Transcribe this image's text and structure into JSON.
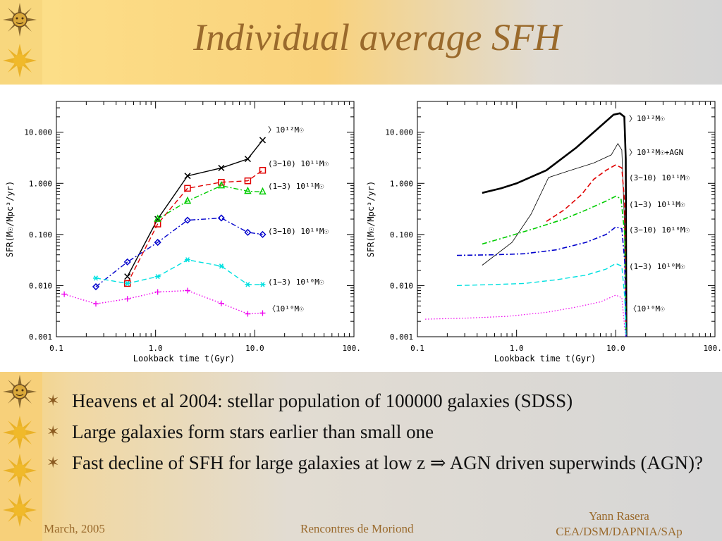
{
  "slide": {
    "title": "Individual average SFH",
    "bullets": [
      "Heavens et al 2004: stellar population of 100000 galaxies (SDSS)",
      "Large galaxies form stars earlier than small one",
      "Fast decline of SFH for large galaxies at low z ⇒ AGN driven superwinds (AGN)?"
    ],
    "footer": {
      "date": "March, 2005",
      "event": "Rencontres de Moriond",
      "author_line1": "Yann Rasera",
      "author_line2": "CEA/DSM/DAPNIA/SAp"
    },
    "decoration": {
      "icon_top": "sun-face-icon",
      "icon_other": "sun-icon",
      "bullet_icon": "star-bullet-icon"
    }
  },
  "chart_data": [
    {
      "type": "line",
      "xlabel": "Lookback time t(Gyr)",
      "ylabel": "SFR(M☉/Mpc³/yr)",
      "xscale": "log",
      "yscale": "log",
      "xlim": [
        0.1,
        100.0
      ],
      "ylim": [
        0.001,
        40
      ],
      "xticks": [
        "0.1",
        "1.0",
        "10.0",
        "100.0"
      ],
      "yticks": [
        "0.001",
        "0.010",
        "0.100",
        "1.000",
        "10.000"
      ],
      "series": [
        {
          "name": "〉10¹²M☉",
          "color": "#000000",
          "dash": "solid",
          "marker": "x",
          "x": [
            0.52,
            1.05,
            2.1,
            4.6,
            8.5,
            12.0
          ],
          "y": [
            0.015,
            0.2,
            1.4,
            2.0,
            3.0,
            7.0
          ]
        },
        {
          "name": "(3−10) 10¹¹M☉",
          "color": "#e00000",
          "dash": "dash",
          "marker": "square",
          "x": [
            0.52,
            1.05,
            2.1,
            4.6,
            8.5,
            12.0
          ],
          "y": [
            0.011,
            0.16,
            0.8,
            1.05,
            1.12,
            1.8
          ]
        },
        {
          "name": "(1−3) 10¹¹M☉",
          "color": "#00cc00",
          "dash": "dashdot",
          "marker": "triangle",
          "x": [
            1.05,
            2.1,
            4.6,
            8.5,
            12.0
          ],
          "y": [
            0.2,
            0.45,
            0.9,
            0.7,
            0.68
          ]
        },
        {
          "name": "(3−10) 10¹⁰M☉",
          "color": "#0000cc",
          "dash": "dashdot",
          "marker": "diamond",
          "x": [
            0.25,
            0.52,
            1.05,
            2.1,
            4.6,
            8.5,
            12.0
          ],
          "y": [
            0.0095,
            0.029,
            0.07,
            0.19,
            0.21,
            0.11,
            0.1
          ]
        },
        {
          "name": "(1−3) 10¹⁰M☉",
          "color": "#00e0e0",
          "dash": "dash",
          "marker": "asterisk",
          "x": [
            0.25,
            0.52,
            1.05,
            2.1,
            4.6,
            8.5,
            12.0
          ],
          "y": [
            0.014,
            0.011,
            0.015,
            0.032,
            0.024,
            0.0105,
            0.0105
          ]
        },
        {
          "name": "〈10¹⁰M☉",
          "color": "#ee00ee",
          "dash": "dot",
          "marker": "plus",
          "x": [
            0.12,
            0.25,
            0.52,
            1.05,
            2.1,
            4.6,
            8.5,
            12.0
          ],
          "y": [
            0.0068,
            0.0044,
            0.0055,
            0.0075,
            0.008,
            0.0045,
            0.0028,
            0.0029
          ]
        }
      ]
    },
    {
      "type": "line",
      "xlabel": "Lookback time t(Gyr)",
      "ylabel": "SFR(M☉/Mpc³/yr)",
      "xscale": "log",
      "yscale": "log",
      "xlim": [
        0.1,
        100.0
      ],
      "ylim": [
        0.001,
        40
      ],
      "xticks": [
        "0.1",
        "1.0",
        "10.0",
        "100.0"
      ],
      "yticks": [
        "0.001",
        "0.010",
        "0.100",
        "1.000",
        "10.000"
      ],
      "series": [
        {
          "name": "〉10¹²M☉",
          "color": "#000000",
          "dash": "solid",
          "width": 2.6,
          "x": [
            0.45,
            0.7,
            1.0,
            2.0,
            4.0,
            7.0,
            9.5,
            11.0,
            12.2,
            12.6,
            12.8
          ],
          "y": [
            0.65,
            0.8,
            1.0,
            1.8,
            5.0,
            13.0,
            22.0,
            23.5,
            20.0,
            3.0,
            0.001
          ]
        },
        {
          "name": "〉10¹²M☉+AGN",
          "color": "#000000",
          "dash": "solid",
          "width": 0.8,
          "x": [
            0.45,
            0.9,
            1.4,
            2.1,
            3.5,
            6.0,
            9.0,
            10.5,
            11.5,
            12.2,
            12.6
          ],
          "y": [
            0.025,
            0.07,
            0.25,
            1.3,
            1.8,
            2.5,
            3.6,
            6.0,
            4.5,
            0.2,
            0.001
          ]
        },
        {
          "name": "(3−10) 10¹¹M☉",
          "color": "#e00000",
          "dash": "dash",
          "width": 1.6,
          "x": [
            2.0,
            3.0,
            4.5,
            6.0,
            8.0,
            10.0,
            11.5,
            12.3,
            12.7
          ],
          "y": [
            0.18,
            0.3,
            0.6,
            1.2,
            1.8,
            2.3,
            2.0,
            0.4,
            0.001
          ]
        },
        {
          "name": "(1−3) 10¹¹M☉",
          "color": "#00cc00",
          "dash": "dashdot",
          "width": 1.6,
          "x": [
            0.45,
            0.8,
            1.5,
            3.0,
            5.0,
            8.0,
            10.0,
            11.3,
            12.3,
            12.7
          ],
          "y": [
            0.065,
            0.09,
            0.13,
            0.2,
            0.3,
            0.45,
            0.56,
            0.5,
            0.1,
            0.001
          ]
        },
        {
          "name": "(3−10) 10¹⁰M☉",
          "color": "#0000cc",
          "dash": "dashdot",
          "width": 1.6,
          "x": [
            0.25,
            0.6,
            1.2,
            2.5,
            5.0,
            8.0,
            10.0,
            11.5,
            12.3,
            12.7
          ],
          "y": [
            0.039,
            0.04,
            0.042,
            0.05,
            0.07,
            0.1,
            0.14,
            0.13,
            0.03,
            0.001
          ]
        },
        {
          "name": "(1−3) 10¹⁰M☉",
          "color": "#00e0e0",
          "dash": "dash",
          "width": 1.4,
          "x": [
            0.25,
            0.6,
            1.2,
            2.5,
            5.0,
            8.0,
            10.0,
            11.5,
            12.3,
            12.7
          ],
          "y": [
            0.01,
            0.0105,
            0.011,
            0.013,
            0.016,
            0.021,
            0.027,
            0.024,
            0.006,
            0.001
          ]
        },
        {
          "name": "〈10¹⁰M☉",
          "color": "#ee00ee",
          "dash": "dot",
          "width": 1.2,
          "x": [
            0.12,
            0.3,
            0.8,
            2.0,
            4.0,
            7.0,
            10.0,
            11.5,
            12.3,
            12.6
          ],
          "y": [
            0.0022,
            0.0023,
            0.0025,
            0.003,
            0.0038,
            0.0048,
            0.0065,
            0.0058,
            0.0015,
            0.001
          ]
        }
      ]
    }
  ]
}
